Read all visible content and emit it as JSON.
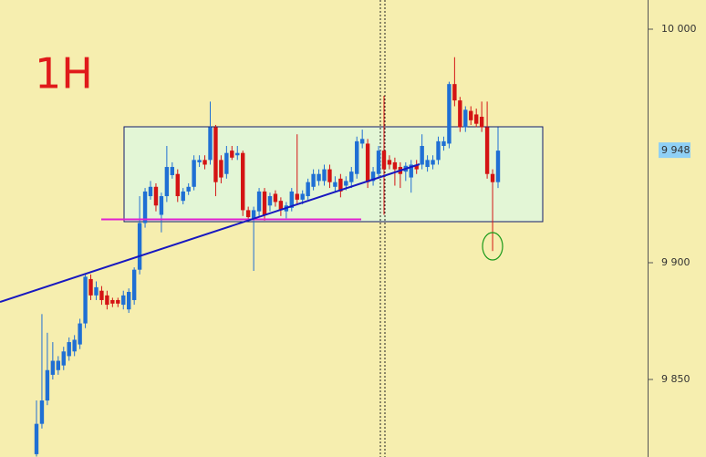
{
  "chart_data": {
    "type": "candlestick",
    "annotation": "1H",
    "up_color": "#1f6fd4",
    "down_color": "#d41414",
    "ylim": [
      9816.8,
      10012.5
    ],
    "yticks": [
      {
        "value": 9850,
        "label": "9 850"
      },
      {
        "value": 9900,
        "label": "9 900"
      },
      {
        "value": 10000,
        "label": "10 000"
      }
    ],
    "last_price": {
      "value": 9948,
      "label": "9 948"
    },
    "open": [
      9818,
      9831,
      9841,
      9852,
      9854,
      9856,
      9860,
      9862,
      9865,
      9874,
      9893,
      9886,
      9888,
      9886,
      9884,
      9884,
      9882,
      9880,
      9884,
      9897,
      9917,
      9928.5,
      9932.5,
      9920.5,
      9928.5,
      9937.5,
      9938,
      9926.5,
      9930.5,
      9932.5,
      9943,
      9944,
      9944,
      9958,
      9944,
      9938,
      9948,
      9946,
      9947,
      9922.5,
      9919,
      9922,
      9930.5,
      9924.5,
      9929.5,
      9926.5,
      9922,
      9923.5,
      9929.5,
      9927,
      9928.5,
      9932.5,
      9935,
      9935,
      9940,
      9932.5,
      9936,
      9933,
      9934.5,
      9938,
      9951,
      9951,
      9935,
      9938,
      9948,
      9944,
      9943,
      9941,
      9939,
      9936.5,
      9942,
      9942,
      9941,
      9942,
      9944,
      9950,
      9951,
      9976.5,
      9969.5,
      9958,
      9965,
      9963.5,
      9962.5,
      9958,
      9938,
      9934.5
    ],
    "high": [
      9841,
      9878,
      9870,
      9866,
      9860,
      9864,
      9868,
      9869,
      9876,
      9895,
      9895,
      9892,
      9890,
      9888,
      9885,
      9885,
      9888,
      9889,
      9898,
      9928.5,
      9932,
      9935,
      9934,
      9930,
      9950,
      9943,
      9940,
      9932,
      9934,
      9946,
      9946,
      9946,
      9969,
      9959,
      9946,
      9950,
      9950,
      9950,
      9948,
      9924,
      9924,
      9932,
      9932,
      9930,
      9931,
      9928,
      9926,
      9932,
      9955,
      9931,
      9936,
      9940,
      9940,
      9942,
      9942,
      9937,
      9938,
      9937,
      9941,
      9954,
      9957,
      9953,
      9941,
      9950,
      9971.5,
      9946,
      9945,
      9943,
      9943,
      9944,
      9944,
      9955,
      9946,
      9946,
      9954,
      9954,
      9977.5,
      9988,
      9971,
      9967,
      9967,
      9966,
      9969,
      9969,
      9940,
      9958
    ],
    "low": [
      9817,
      9829,
      9839,
      9850,
      9852,
      9854,
      9858,
      9860,
      9863,
      9872,
      9884,
      9884,
      9882,
      9880,
      9881,
      9881,
      9880,
      9878.5,
      9882,
      9895,
      9915,
      9927,
      9922,
      9913,
      9926,
      9936,
      9926,
      9925,
      9929,
      9931,
      9941,
      9940,
      9942,
      9928.5,
      9934,
      9936,
      9944,
      9944,
      9920,
      9918,
      9896.5,
      9920,
      9918,
      9922,
      9924,
      9920,
      9919,
      9922,
      9925,
      9925,
      9927,
      9931,
      9933,
      9933,
      9932,
      9930,
      9928,
      9931,
      9932,
      9936,
      9949,
      9932,
      9933,
      9936,
      9920.5,
      9940,
      9933,
      9932,
      9935,
      9930,
      9938,
      9940,
      9939,
      9940,
      9942,
      9948,
      9949,
      9967,
      9956,
      9956,
      9959,
      9958,
      9956,
      9936,
      9905,
      9932
    ],
    "close": [
      9831,
      9841,
      9854,
      9858,
      9858,
      9862,
      9866,
      9867,
      9874,
      9894,
      9886,
      9889.5,
      9884,
      9882,
      9882.5,
      9882.5,
      9886,
      9887.5,
      9897,
      9917,
      9930.5,
      9932.5,
      9924.5,
      9928.5,
      9941,
      9941,
      9928.5,
      9930.5,
      9932.5,
      9944,
      9944,
      9942,
      9958,
      9934.5,
      9936.5,
      9947,
      9945,
      9947,
      9922.5,
      9919.5,
      9922.5,
      9930.5,
      9920.5,
      9928.5,
      9926,
      9922.5,
      9924.5,
      9930.5,
      9927,
      9929.5,
      9934.5,
      9938,
      9938,
      9940,
      9934.5,
      9934.5,
      9930.5,
      9935,
      9939,
      9952,
      9953,
      9934.5,
      9939,
      9948,
      9940,
      9942,
      9940,
      9938,
      9941.5,
      9942,
      9940,
      9950,
      9944,
      9944,
      9952,
      9952,
      9976.5,
      9969.5,
      9958,
      9965.5,
      9961,
      9959.5,
      9958,
      9938,
      9934.5,
      9948
    ]
  }
}
